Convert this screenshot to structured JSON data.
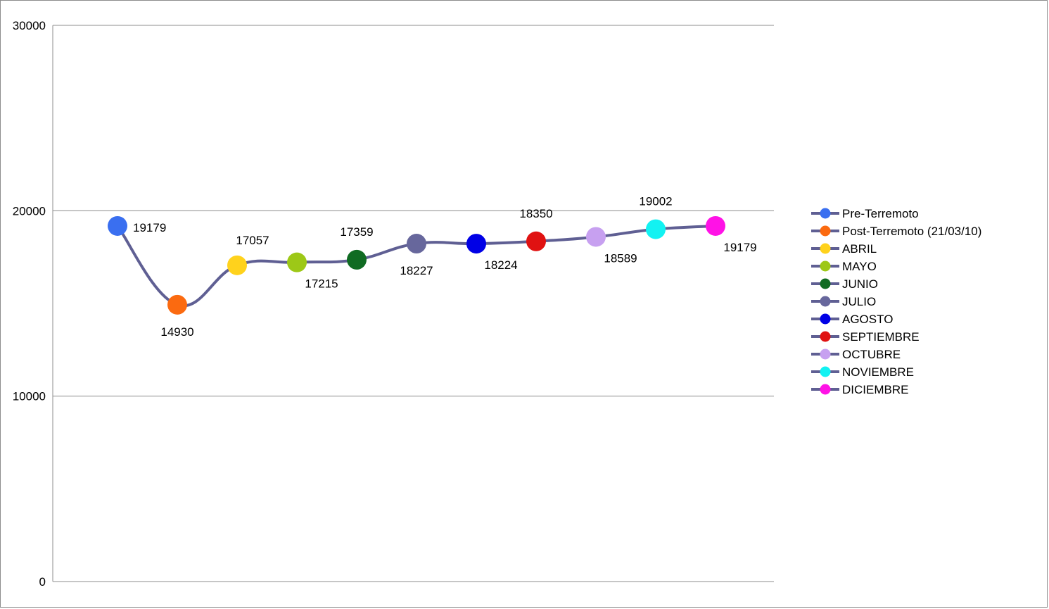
{
  "chart_data": {
    "type": "line",
    "title": "",
    "xlabel": "",
    "ylabel": "",
    "ylim": [
      0,
      30000
    ],
    "yticks": [
      0,
      10000,
      20000,
      30000
    ],
    "grid": true,
    "legend_position": "right",
    "line_color": "#5f5f93",
    "smooth": true,
    "points": [
      {
        "name": "Pre-Terremoto",
        "value": 19179,
        "label": "19179",
        "color": "#3a6ff0",
        "label_pos": "right"
      },
      {
        "name": "Post-Terremoto (21/03/10)",
        "value": 14930,
        "label": "14930",
        "color": "#fb6a10",
        "label_pos": "below"
      },
      {
        "name": "ABRIL",
        "value": 17057,
        "label": "17057",
        "color": "#ffd21c",
        "label_pos": "above"
      },
      {
        "name": "MAYO",
        "value": 17215,
        "label": "17215",
        "color": "#9dc817",
        "label_pos": "below-right"
      },
      {
        "name": "JUNIO",
        "value": 17359,
        "label": "17359",
        "color": "#106b22",
        "label_pos": "above-right"
      },
      {
        "name": "JULIO",
        "value": 18227,
        "label": "18227",
        "color": "#67679c",
        "label_pos": "below"
      },
      {
        "name": "AGOSTO",
        "value": 18224,
        "label": "18224",
        "color": "#0000e6",
        "label_pos": "below-right"
      },
      {
        "name": "SEPTIEMBRE",
        "value": 18350,
        "label": "18350",
        "color": "#e01212",
        "label_pos": "above-right"
      },
      {
        "name": "OCTUBRE",
        "value": 18589,
        "label": "18589",
        "color": "#c7a0f0",
        "label_pos": "below-right"
      },
      {
        "name": "NOVIEMBRE",
        "value": 19002,
        "label": "19002",
        "color": "#12f2f2",
        "label_pos": "above-right"
      },
      {
        "name": "DICIEMBRE",
        "value": 19179,
        "label": "19179",
        "color": "#ff12e6",
        "label_pos": "below-right"
      }
    ]
  }
}
